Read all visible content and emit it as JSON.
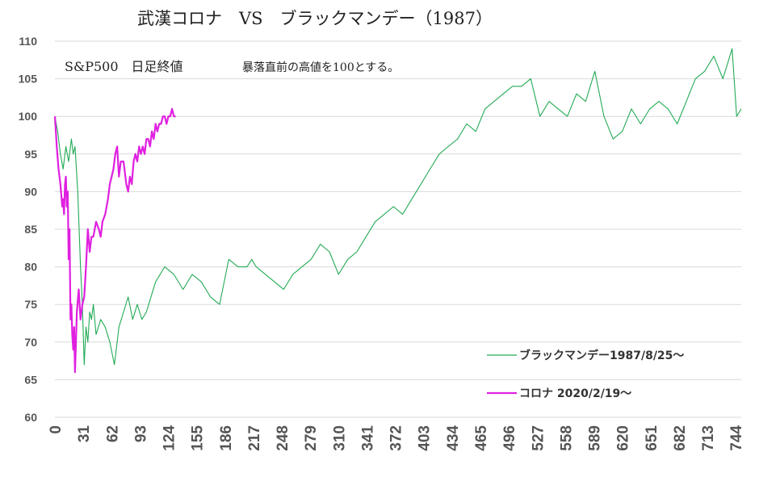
{
  "chart_data": {
    "type": "line",
    "title": "武漢コロナ　VS　ブラックマンデー（1987）",
    "subtitle": "S&P500　日足終値",
    "annotation": "暴落直前の高値を100とする。",
    "ylim": [
      60,
      110
    ],
    "yticks": [
      "60",
      "65",
      "70",
      "75",
      "80",
      "85",
      "90",
      "95",
      "100",
      "105",
      "110"
    ],
    "xlim": [
      0,
      750
    ],
    "xticks": [
      "0",
      "31",
      "62",
      "93",
      "124",
      "155",
      "186",
      "217",
      "248",
      "279",
      "310",
      "341",
      "372",
      "403",
      "434",
      "465",
      "496",
      "527",
      "558",
      "589",
      "620",
      "651",
      "682",
      "713",
      "744"
    ],
    "grid": true,
    "legend_position": "bottom-right",
    "series": [
      {
        "name": "ブラックマンデー1987/8/25〜",
        "color": "#22aa55",
        "x": [
          0,
          3,
          6,
          9,
          12,
          15,
          18,
          20,
          22,
          25,
          28,
          30,
          32,
          34,
          36,
          38,
          40,
          42,
          45,
          50,
          55,
          60,
          65,
          70,
          75,
          80,
          85,
          90,
          95,
          100,
          110,
          120,
          130,
          140,
          150,
          160,
          170,
          180,
          190,
          200,
          210,
          215,
          220,
          230,
          240,
          250,
          260,
          270,
          280,
          290,
          300,
          310,
          320,
          330,
          340,
          350,
          360,
          370,
          380,
          390,
          400,
          410,
          420,
          430,
          440,
          450,
          460,
          470,
          480,
          490,
          500,
          510,
          520,
          530,
          540,
          550,
          560,
          570,
          580,
          590,
          600,
          610,
          620,
          630,
          640,
          650,
          660,
          670,
          680,
          690,
          700,
          710,
          720,
          730,
          740,
          745,
          750
        ],
        "y": [
          100,
          98,
          95,
          93,
          96,
          94,
          97,
          95,
          96,
          90,
          80,
          75,
          67,
          72,
          70,
          74,
          73,
          75,
          71,
          73,
          72,
          70,
          67,
          72,
          74,
          76,
          73,
          75,
          73,
          74,
          78,
          80,
          79,
          77,
          79,
          78,
          76,
          75,
          81,
          80,
          80,
          81,
          80,
          79,
          78,
          77,
          79,
          80,
          81,
          83,
          82,
          79,
          81,
          82,
          84,
          86,
          87,
          88,
          87,
          89,
          91,
          93,
          95,
          96,
          97,
          99,
          98,
          101,
          102,
          103,
          104,
          104,
          105,
          100,
          102,
          101,
          100,
          103,
          102,
          106,
          100,
          97,
          98,
          101,
          99,
          101,
          102,
          101,
          99,
          102,
          105,
          106,
          108,
          105,
          109,
          100,
          101
        ]
      },
      {
        "name": "コロナ 2020/2/19〜",
        "color": "#e020e0",
        "x": [
          0,
          2,
          4,
          6,
          8,
          9,
          10,
          11,
          12,
          13,
          14,
          15,
          16,
          17,
          18,
          19,
          20,
          21,
          22,
          24,
          26,
          28,
          30,
          32,
          34,
          36,
          38,
          40,
          42,
          45,
          48,
          50,
          52,
          55,
          58,
          60,
          62,
          64,
          66,
          68,
          70,
          72,
          75,
          78,
          80,
          82,
          84,
          86,
          88,
          90,
          92,
          94,
          96,
          98,
          100,
          102,
          104,
          106,
          108,
          110,
          112,
          114,
          116,
          118,
          120,
          122,
          124,
          126,
          128,
          130,
          132
        ],
        "y": [
          100,
          96,
          93,
          91,
          88,
          89,
          87,
          91,
          92,
          88,
          90,
          81,
          85,
          73,
          75,
          71,
          69,
          72,
          66,
          74,
          77,
          73,
          75,
          76,
          80,
          85,
          82,
          84,
          84,
          86,
          85,
          84,
          86,
          87,
          89,
          91,
          92,
          93,
          95,
          96,
          92,
          94,
          94,
          91,
          90,
          92,
          91,
          94,
          95,
          94,
          96,
          95,
          96,
          95,
          97,
          97,
          96,
          98,
          97,
          99,
          98,
          99,
          99,
          100,
          100,
          99,
          100,
          100,
          101,
          100,
          100
        ]
      }
    ]
  }
}
